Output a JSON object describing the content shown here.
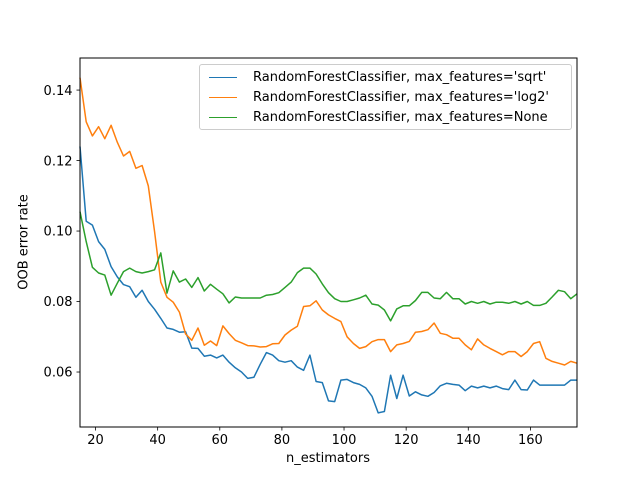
{
  "figure": {
    "background": "#ffffff"
  },
  "chart_data": {
    "type": "line",
    "title": "",
    "xlabel": "n_estimators",
    "ylabel": "OOB error rate",
    "grid": false,
    "xlim": [
      15,
      175
    ],
    "ylim": [
      0.0444,
      0.1491
    ],
    "x_ticks": {
      "values": [
        20,
        40,
        60,
        80,
        100,
        120,
        140,
        160
      ],
      "labels": [
        "20",
        "40",
        "60",
        "80",
        "100",
        "120",
        "140",
        "160"
      ]
    },
    "y_ticks": {
      "values": [
        0.06,
        0.08,
        0.1,
        0.12,
        0.14
      ],
      "labels": [
        "0.06",
        "0.08",
        "0.10",
        "0.12",
        "0.14"
      ]
    },
    "legend": {
      "position": "upper right",
      "border_color": "#cccccc"
    },
    "x": [
      15,
      17,
      19,
      21,
      23,
      25,
      27,
      29,
      31,
      33,
      35,
      37,
      39,
      41,
      43,
      45,
      47,
      49,
      51,
      53,
      55,
      57,
      59,
      61,
      63,
      65,
      67,
      69,
      71,
      73,
      75,
      77,
      79,
      81,
      83,
      85,
      87,
      89,
      91,
      93,
      95,
      97,
      99,
      101,
      103,
      105,
      107,
      109,
      111,
      113,
      115,
      117,
      119,
      121,
      123,
      125,
      127,
      129,
      131,
      133,
      135,
      137,
      139,
      141,
      143,
      145,
      147,
      149,
      151,
      153,
      155,
      157,
      159,
      161,
      163,
      165,
      167,
      169,
      171,
      173,
      175
    ],
    "series": [
      {
        "name": "RandomForestClassifier, max_features='sqrt'",
        "color": "#1f77b4",
        "values": [
          0.124,
          0.1028,
          0.1017,
          0.097,
          0.0948,
          0.0899,
          0.087,
          0.0848,
          0.0842,
          0.0812,
          0.0832,
          0.08,
          0.0778,
          0.0752,
          0.0725,
          0.0721,
          0.0713,
          0.0714,
          0.0668,
          0.0667,
          0.0645,
          0.0648,
          0.064,
          0.0648,
          0.0628,
          0.0612,
          0.06,
          0.0582,
          0.0585,
          0.0622,
          0.0655,
          0.0648,
          0.0632,
          0.0628,
          0.0632,
          0.0614,
          0.0605,
          0.0648,
          0.0573,
          0.057,
          0.0518,
          0.0516,
          0.0577,
          0.0579,
          0.057,
          0.0565,
          0.0555,
          0.0531,
          0.0484,
          0.0488,
          0.0591,
          0.0525,
          0.0591,
          0.0532,
          0.0544,
          0.0535,
          0.0531,
          0.0542,
          0.0561,
          0.0568,
          0.0565,
          0.0563,
          0.0547,
          0.056,
          0.0555,
          0.056,
          0.0555,
          0.056,
          0.0553,
          0.055,
          0.0577,
          0.055,
          0.0549,
          0.0577,
          0.0563,
          0.0563,
          0.0563,
          0.0563,
          0.0563,
          0.0577,
          0.0577
        ]
      },
      {
        "name": "RandomForestClassifier, max_features='log2'",
        "color": "#ff7f0e",
        "values": [
          0.1435,
          0.131,
          0.127,
          0.1296,
          0.1262,
          0.13,
          0.1252,
          0.1213,
          0.1226,
          0.1178,
          0.1186,
          0.1128,
          0.0998,
          0.0855,
          0.0812,
          0.0798,
          0.077,
          0.0708,
          0.069,
          0.0725,
          0.0676,
          0.0688,
          0.0675,
          0.0731,
          0.0709,
          0.069,
          0.0683,
          0.0675,
          0.0674,
          0.0671,
          0.0672,
          0.068,
          0.0681,
          0.0705,
          0.0719,
          0.073,
          0.0786,
          0.0788,
          0.0802,
          0.0776,
          0.0762,
          0.0752,
          0.0743,
          0.07,
          0.0681,
          0.0667,
          0.0672,
          0.0686,
          0.0692,
          0.0692,
          0.0658,
          0.0677,
          0.0681,
          0.0687,
          0.0713,
          0.0715,
          0.072,
          0.0739,
          0.071,
          0.0706,
          0.0696,
          0.0696,
          0.0677,
          0.0663,
          0.0694,
          0.0677,
          0.0667,
          0.0658,
          0.0649,
          0.0658,
          0.0658,
          0.0644,
          0.0658,
          0.0681,
          0.0686,
          0.0639,
          0.063,
          0.0625,
          0.062,
          0.063,
          0.0625
        ]
      },
      {
        "name": "RandomForestClassifier, max_features=None",
        "color": "#2ca02c",
        "values": [
          0.1055,
          0.097,
          0.0897,
          0.0881,
          0.0875,
          0.0818,
          0.0852,
          0.0885,
          0.0895,
          0.0885,
          0.0881,
          0.0885,
          0.089,
          0.0938,
          0.0824,
          0.0887,
          0.0855,
          0.0864,
          0.084,
          0.0868,
          0.083,
          0.0849,
          0.0835,
          0.0822,
          0.0796,
          0.0813,
          0.081,
          0.081,
          0.081,
          0.081,
          0.0818,
          0.082,
          0.0825,
          0.084,
          0.0855,
          0.0882,
          0.0895,
          0.0895,
          0.0878,
          0.085,
          0.0825,
          0.0808,
          0.08,
          0.08,
          0.0805,
          0.081,
          0.0818,
          0.0793,
          0.079,
          0.0776,
          0.0745,
          0.0779,
          0.0788,
          0.0788,
          0.0803,
          0.0826,
          0.0826,
          0.081,
          0.0808,
          0.0826,
          0.0808,
          0.0808,
          0.0793,
          0.08,
          0.0795,
          0.08,
          0.0793,
          0.0798,
          0.0798,
          0.0795,
          0.08,
          0.0793,
          0.08,
          0.0789,
          0.0789,
          0.0795,
          0.0813,
          0.0832,
          0.0828,
          0.0808,
          0.0822
        ]
      }
    ]
  }
}
